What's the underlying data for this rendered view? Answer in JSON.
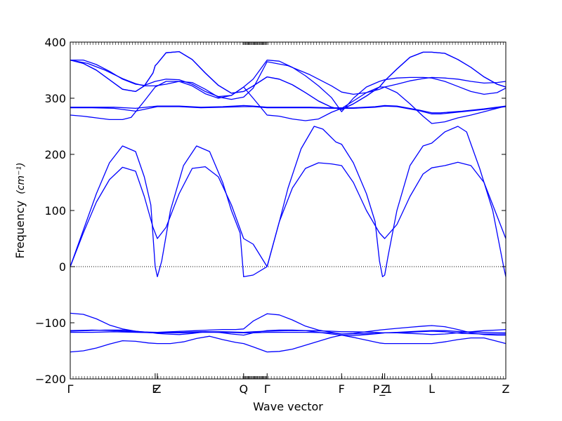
{
  "chart_data": {
    "type": "line",
    "title": "",
    "xlabel": "Wave vector",
    "ylabel": "Frequency",
    "ylabel_unit": "(cm⁻¹)",
    "xlim": [
      0,
      100
    ],
    "ylim": [
      -200,
      400
    ],
    "yticks": [
      -200,
      -100,
      0,
      100,
      200,
      300,
      400
    ],
    "x_points": [
      {
        "label": "Γ",
        "x": 0
      },
      {
        "label": "F",
        "x": 19.5
      },
      {
        "label": "Z",
        "x": 20.0
      },
      {
        "label": "Q",
        "x": 39.8
      },
      {
        "label": "Γ",
        "x": 45.2
      },
      {
        "label": "F",
        "x": 62.3
      },
      {
        "label": "P_1",
        "x": 71.7
      },
      {
        "label": "Z",
        "x": 72.2
      },
      {
        "label": "L",
        "x": 83.0
      },
      {
        "label": "Z",
        "x": 100
      }
    ],
    "line_color": "#0000ff",
    "series": [
      {
        "x": [
          0,
          3,
          6,
          9,
          12,
          15,
          17,
          19,
          19.5,
          20,
          22,
          25,
          28,
          31,
          34,
          37,
          39.8,
          42,
          45.2,
          48,
          51,
          54,
          57,
          60,
          62.3,
          65,
          68,
          71,
          72.2,
          75,
          78,
          81,
          83,
          86,
          89,
          92,
          95,
          98,
          100
        ],
        "y": [
          368,
          362,
          350,
          333,
          316,
          312,
          322,
          345,
          358,
          362,
          381,
          383,
          369,
          345,
          323,
          309,
          312,
          322,
          338,
          334,
          324,
          310,
          295,
          284,
          280,
          290,
          304,
          320,
          331,
          352,
          373,
          382,
          382,
          380,
          369,
          355,
          338,
          325,
          320
        ]
      },
      {
        "x": [
          0,
          3,
          6,
          9,
          12,
          15,
          17,
          19.5,
          22,
          25,
          28,
          31,
          34,
          37,
          39.8,
          42,
          45.2,
          48,
          51,
          54,
          57,
          60,
          62.3,
          65,
          68,
          71,
          72.2,
          75,
          78,
          81,
          83,
          86,
          89,
          92,
          95,
          98,
          100
        ],
        "y": [
          368,
          368,
          360,
          348,
          334,
          325,
          323,
          330,
          334,
          333,
          325,
          312,
          303,
          305,
          320,
          334,
          368,
          366,
          355,
          340,
          322,
          301,
          276,
          300,
          320,
          330,
          333,
          336,
          337,
          337,
          336,
          330,
          321,
          312,
          307,
          310,
          318
        ]
      },
      {
        "x": [
          0,
          4,
          8,
          12,
          15,
          17,
          19.5,
          22,
          25,
          28,
          31,
          34,
          37,
          39.8,
          42,
          45.2,
          50,
          55,
          60,
          62.3,
          65,
          68,
          71,
          72.2,
          75,
          78,
          81,
          83,
          86,
          89,
          92,
          95,
          98,
          100
        ],
        "y": [
          368,
          362,
          350,
          335,
          326,
          322,
          322,
          325,
          330,
          328,
          316,
          302,
          298,
          302,
          318,
          365,
          358,
          342,
          322,
          311,
          307,
          310,
          316,
          320,
          325,
          331,
          335,
          337,
          336,
          334,
          330,
          327,
          328,
          330
        ]
      },
      {
        "x": [
          0,
          3,
          6,
          9,
          12,
          15,
          17,
          19,
          19.5,
          20,
          22,
          25,
          28,
          31,
          34,
          37,
          39.8,
          42,
          45.2,
          48,
          51,
          54,
          57,
          60,
          62.3,
          65,
          68,
          71,
          72.2,
          75,
          78,
          81,
          83,
          86,
          89,
          92,
          95,
          98,
          100
        ],
        "y": [
          368,
          362,
          350,
          333,
          316,
          312,
          322,
          345,
          358,
          362,
          381,
          383,
          369,
          345,
          323,
          309,
          312,
          322,
          338,
          334,
          324,
          310,
          295,
          284,
          280,
          290,
          304,
          320,
          331,
          352,
          373,
          382,
          382,
          380,
          369,
          355,
          338,
          325,
          320
        ]
      },
      {
        "x": [
          0,
          3,
          6,
          9,
          12,
          14,
          17,
          19.5,
          22,
          25,
          28,
          31,
          34,
          37,
          39.8,
          42,
          45.2,
          48,
          51,
          54,
          57,
          60,
          62.3,
          65,
          68,
          71,
          72.2,
          75,
          78,
          81,
          83,
          86,
          89,
          92,
          95,
          98,
          100
        ],
        "y": [
          270,
          268,
          265,
          262,
          262,
          266,
          295,
          320,
          330,
          330,
          322,
          308,
          300,
          305,
          320,
          300,
          270,
          268,
          263,
          260,
          263,
          275,
          282,
          295,
          310,
          320,
          320,
          310,
          290,
          268,
          255,
          258,
          265,
          270,
          276,
          282,
          286
        ]
      },
      {
        "x": [
          0,
          5,
          10,
          15,
          20,
          25,
          30,
          35,
          39.8,
          42,
          45.2,
          50,
          55,
          60,
          62.3,
          65,
          70,
          72.2,
          75,
          80,
          83,
          85,
          90,
          95,
          100
        ],
        "y": [
          284,
          284,
          284,
          282,
          286,
          286,
          284,
          285,
          287,
          286,
          284,
          284,
          284,
          283,
          283,
          283,
          285,
          287,
          286,
          279,
          274,
          274,
          277,
          281,
          286
        ]
      },
      {
        "x": [
          0,
          5,
          10,
          15,
          20,
          25,
          30,
          35,
          39.8,
          42,
          45.2,
          50,
          55,
          60,
          62.3,
          65,
          70,
          72.2,
          75,
          80,
          83,
          85,
          90,
          95,
          100
        ],
        "y": [
          283,
          283,
          282,
          277,
          285,
          285,
          283,
          284,
          285,
          285,
          283,
          283,
          283,
          282,
          282,
          282,
          284,
          286,
          285,
          278,
          272,
          272,
          276,
          280,
          285
        ]
      },
      {
        "x": [
          0,
          3,
          6,
          9,
          12,
          15,
          17,
          18.5,
          19.5,
          20,
          21,
          23,
          26,
          29,
          32,
          35,
          37,
          39,
          39.8,
          42,
          45.2,
          48,
          50,
          53,
          56,
          58,
          61,
          62.3,
          65,
          68,
          70,
          71,
          71.7,
          72.2,
          73,
          75,
          78,
          81,
          83,
          86,
          89,
          91,
          94,
          97,
          99.5,
          100
        ],
        "y": [
          0,
          65,
          130,
          185,
          215,
          205,
          160,
          110,
          0,
          -18,
          10,
          100,
          180,
          215,
          205,
          150,
          100,
          60,
          -18,
          -15,
          0,
          80,
          140,
          210,
          250,
          245,
          222,
          218,
          185,
          130,
          80,
          10,
          -18,
          -15,
          20,
          100,
          180,
          215,
          220,
          240,
          250,
          240,
          175,
          100,
          0,
          -18
        ]
      },
      {
        "x": [
          0,
          3,
          6,
          9,
          12,
          15,
          17,
          19,
          20,
          22,
          25,
          28,
          31,
          34,
          37,
          39.8,
          42,
          45.2,
          48,
          51,
          54,
          57,
          60,
          62.3,
          65,
          68,
          71,
          72.2,
          75,
          78,
          81,
          83,
          86,
          89,
          92,
          95,
          98,
          100
        ],
        "y": [
          0,
          60,
          115,
          155,
          177,
          170,
          125,
          70,
          50,
          70,
          130,
          175,
          178,
          160,
          110,
          50,
          40,
          0,
          80,
          140,
          175,
          185,
          183,
          180,
          150,
          100,
          60,
          50,
          75,
          125,
          165,
          176,
          180,
          186,
          180,
          150,
          90,
          50
        ]
      },
      {
        "x": [
          0,
          3,
          6,
          9,
          12,
          15,
          18,
          20,
          23,
          26,
          29,
          32,
          35,
          38,
          39.8,
          42,
          45.2,
          48,
          51,
          54,
          57,
          60,
          62.3,
          65,
          68,
          71,
          72.2,
          75,
          78,
          81,
          83,
          86,
          89,
          92,
          95,
          98,
          100
        ],
        "y": [
          -83,
          -85,
          -93,
          -104,
          -111,
          -115,
          -117,
          -117,
          -116,
          -115,
          -114,
          -113,
          -112,
          -112,
          -111,
          -97,
          -84,
          -86,
          -95,
          -106,
          -113,
          -117,
          -120,
          -119,
          -116,
          -113,
          -112,
          -110,
          -108,
          -106,
          -105,
          -107,
          -112,
          -118,
          -121,
          -122,
          -122
        ]
      },
      {
        "x": [
          0,
          5,
          10,
          15,
          20,
          25,
          30,
          35,
          39.8,
          42,
          45.2,
          50,
          55,
          60,
          62.3,
          65,
          70,
          72.2,
          75,
          80,
          83,
          86,
          90,
          95,
          100
        ],
        "y": [
          -114,
          -113,
          -114,
          -116,
          -117,
          -117,
          -116,
          -116,
          -117,
          -116,
          -115,
          -114,
          -114,
          -115,
          -116,
          -116,
          -117,
          -118,
          -117,
          -115,
          -114,
          -114,
          -116,
          -117,
          -118
        ]
      },
      {
        "x": [
          0,
          5,
          10,
          15,
          20,
          25,
          30,
          35,
          39.8,
          42,
          45.2,
          50,
          55,
          60,
          62.3,
          65,
          70,
          72.2,
          75,
          80,
          83,
          86,
          90,
          95,
          100
        ],
        "y": [
          -117,
          -117,
          -116,
          -117,
          -118,
          -118,
          -117,
          -117,
          -118,
          -118,
          -117,
          -117,
          -117,
          -118,
          -120,
          -120,
          -119,
          -118,
          -118,
          -116,
          -115,
          -116,
          -119,
          -120,
          -120
        ]
      },
      {
        "x": [
          0,
          4,
          8,
          12,
          15,
          17,
          19,
          20,
          22,
          25,
          28,
          31,
          34,
          37,
          39.8,
          42,
          45.2,
          48,
          51,
          54,
          57,
          60,
          62.3,
          65,
          68,
          71,
          72.2,
          75,
          78,
          81,
          83,
          86,
          89,
          92,
          95,
          98,
          100
        ],
        "y": [
          -115,
          -114,
          -113,
          -113,
          -115,
          -117,
          -118,
          -119,
          -120,
          -121,
          -119,
          -116,
          -117,
          -120,
          -122,
          -118,
          -114,
          -113,
          -113,
          -114,
          -117,
          -120,
          -122,
          -123,
          -121,
          -119,
          -118,
          -118,
          -119,
          -120,
          -121,
          -120,
          -118,
          -116,
          -114,
          -113,
          -112
        ]
      },
      {
        "x": [
          0,
          3,
          6,
          9,
          12,
          15,
          18,
          20,
          23,
          26,
          29,
          32,
          35,
          38,
          39.8,
          42,
          45.2,
          48,
          51,
          54,
          57,
          60,
          62.3,
          65,
          68,
          71,
          72.2,
          75,
          78,
          81,
          83,
          86,
          89,
          92,
          95,
          98,
          100
        ],
        "y": [
          -152,
          -150,
          -145,
          -138,
          -132,
          -133,
          -136,
          -137,
          -137,
          -134,
          -128,
          -124,
          -130,
          -135,
          -137,
          -143,
          -152,
          -151,
          -147,
          -140,
          -133,
          -126,
          -122,
          -126,
          -131,
          -136,
          -137,
          -137,
          -137,
          -137,
          -137,
          -134,
          -130,
          -127,
          -127,
          -133,
          -137
        ]
      }
    ]
  }
}
